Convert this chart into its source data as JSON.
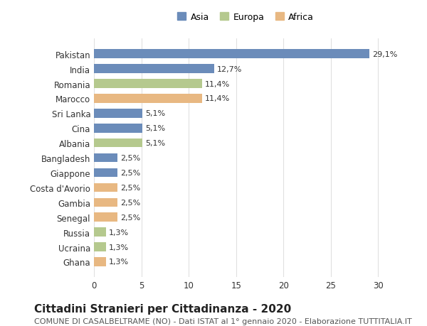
{
  "countries": [
    "Pakistan",
    "India",
    "Romania",
    "Marocco",
    "Sri Lanka",
    "Cina",
    "Albania",
    "Bangladesh",
    "Giappone",
    "Costa d'Avorio",
    "Gambia",
    "Senegal",
    "Russia",
    "Ucraina",
    "Ghana"
  ],
  "values": [
    29.1,
    12.7,
    11.4,
    11.4,
    5.1,
    5.1,
    5.1,
    2.5,
    2.5,
    2.5,
    2.5,
    2.5,
    1.3,
    1.3,
    1.3
  ],
  "labels": [
    "29,1%",
    "12,7%",
    "11,4%",
    "11,4%",
    "5,1%",
    "5,1%",
    "5,1%",
    "2,5%",
    "2,5%",
    "2,5%",
    "2,5%",
    "2,5%",
    "1,3%",
    "1,3%",
    "1,3%"
  ],
  "continents": [
    "Asia",
    "Asia",
    "Europa",
    "Africa",
    "Asia",
    "Asia",
    "Europa",
    "Asia",
    "Asia",
    "Africa",
    "Africa",
    "Africa",
    "Europa",
    "Europa",
    "Africa"
  ],
  "colors": {
    "Asia": "#6b8cba",
    "Europa": "#b5c98e",
    "Africa": "#e8b882"
  },
  "legend_labels": [
    "Asia",
    "Europa",
    "Africa"
  ],
  "title": "Cittadini Stranieri per Cittadinanza - 2020",
  "subtitle": "COMUNE DI CASALBELTRAME (NO) - Dati ISTAT al 1° gennaio 2020 - Elaborazione TUTTITALIA.IT",
  "xlim": [
    0,
    32
  ],
  "xticks": [
    0,
    5,
    10,
    15,
    20,
    25,
    30
  ],
  "background_color": "#ffffff",
  "grid_color": "#e0e0e0",
  "bar_height": 0.6,
  "title_fontsize": 11,
  "subtitle_fontsize": 8,
  "label_fontsize": 8,
  "tick_fontsize": 8.5,
  "legend_fontsize": 9
}
